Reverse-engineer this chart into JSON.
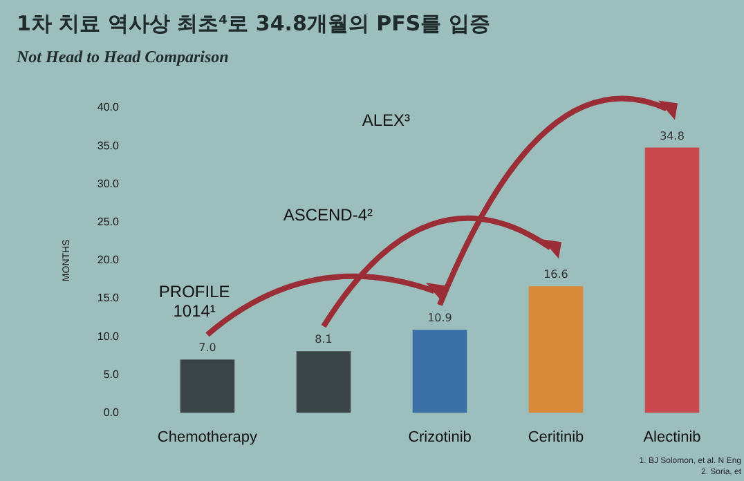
{
  "chart_data": {
    "type": "bar",
    "title": "1차 치료 역사상 최초⁴로 34.8개월의 PFS를 입증",
    "subtitle": "Not Head to Head Comparison",
    "ylabel": "MONTHS",
    "categories": [
      "Chemotherapy",
      null,
      "Crizotinib",
      "Ceritinib",
      "Alectinib"
    ],
    "values": [
      7.0,
      8.1,
      10.9,
      16.6,
      34.8
    ],
    "colors": [
      "#3b4548",
      "#3b4548",
      "#3a6fa6",
      "#d9893a",
      "#c9484e"
    ],
    "value_labels": [
      "7.0",
      "8.1",
      "10.9",
      "16.6",
      "34.8"
    ],
    "ylim": [
      0,
      40
    ],
    "yticks": [
      {
        "value": 0,
        "label": "0.0"
      },
      {
        "value": 5,
        "label": "5.0"
      },
      {
        "value": 10,
        "label": "10.0"
      },
      {
        "value": 15,
        "label": "15.0"
      },
      {
        "value": 20,
        "label": "20.0"
      },
      {
        "value": 25,
        "label": "25.0"
      },
      {
        "value": 30,
        "label": "30.0"
      },
      {
        "value": 35,
        "label": "35.0"
      },
      {
        "value": 40,
        "label": "40.0"
      }
    ],
    "grid": false,
    "legend": false,
    "annotations": [
      "PROFILE\n1014¹",
      "ASCEND-4²",
      "ALEX³",
      "1. BJ Solomon, et al. N Eng",
      "2. Soria, et"
    ]
  }
}
